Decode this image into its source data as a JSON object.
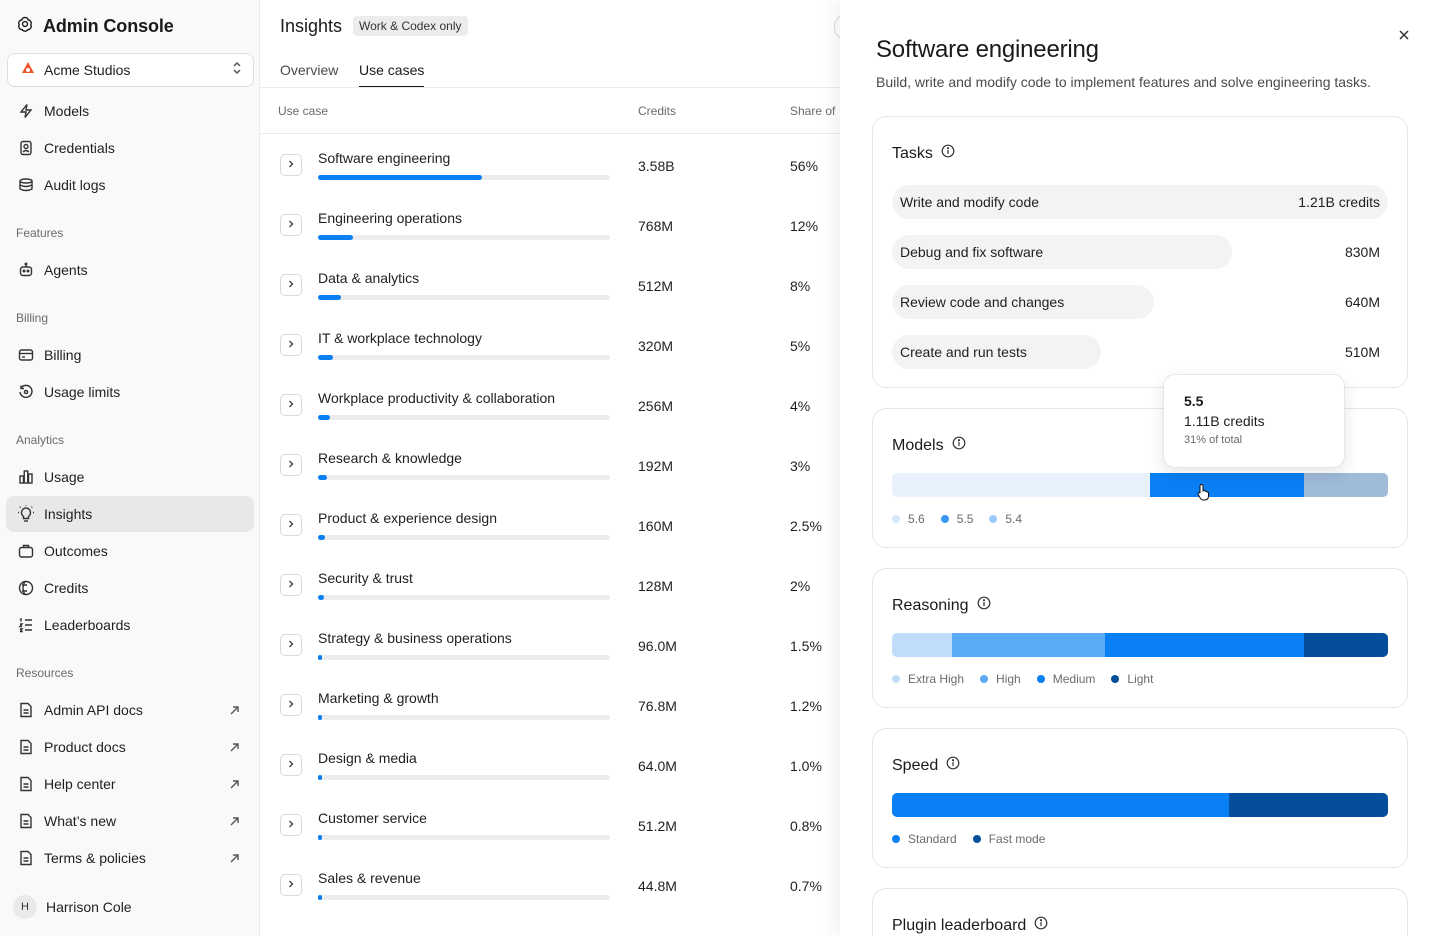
{
  "app": {
    "title": "Admin Console"
  },
  "org": {
    "name": "Acme Studios"
  },
  "sidebar": {
    "top_items": [
      {
        "label": "Models",
        "icon": "bolt-icon"
      },
      {
        "label": "Credentials",
        "icon": "badge-icon"
      },
      {
        "label": "Audit logs",
        "icon": "stack-icon"
      }
    ],
    "features_label": "Features",
    "features_items": [
      {
        "label": "Agents",
        "icon": "robot-icon"
      }
    ],
    "billing_label": "Billing",
    "billing_items": [
      {
        "label": "Billing",
        "icon": "card-icon"
      },
      {
        "label": "Usage limits",
        "icon": "limit-icon"
      }
    ],
    "analytics_label": "Analytics",
    "analytics_items": [
      {
        "label": "Usage",
        "icon": "bar-chart-icon"
      },
      {
        "label": "Insights",
        "icon": "lightbulb-icon",
        "active": true
      },
      {
        "label": "Outcomes",
        "icon": "briefcase-icon"
      },
      {
        "label": "Credits",
        "icon": "coin-icon"
      },
      {
        "label": "Leaderboards",
        "icon": "leaderboard-icon"
      }
    ],
    "resources_label": "Resources",
    "resources_items": [
      {
        "label": "Admin API docs",
        "icon": "doc-icon"
      },
      {
        "label": "Product docs",
        "icon": "doc-icon"
      },
      {
        "label": "Help center",
        "icon": "doc-icon"
      },
      {
        "label": "What’s new",
        "icon": "doc-icon"
      },
      {
        "label": "Terms & policies",
        "icon": "doc-icon"
      }
    ]
  },
  "user": {
    "initial": "H",
    "name": "Harrison Cole"
  },
  "main": {
    "title": "Insights",
    "badge": "Work & Codex only",
    "tabs": [
      {
        "label": "Overview"
      },
      {
        "label": "Use cases",
        "active": true
      }
    ],
    "columns": {
      "use_case": "Use case",
      "credits": "Credits",
      "share": "Share of"
    },
    "rows": [
      {
        "name": "Software engineering",
        "credits": "3.58B",
        "share": "56%",
        "fraction": 0.56
      },
      {
        "name": "Engineering operations",
        "credits": "768M",
        "share": "12%",
        "fraction": 0.12
      },
      {
        "name": "Data & analytics",
        "credits": "512M",
        "share": "8%",
        "fraction": 0.08
      },
      {
        "name": "IT & workplace technology",
        "credits": "320M",
        "share": "5%",
        "fraction": 0.05
      },
      {
        "name": "Workplace productivity & collaboration",
        "credits": "256M",
        "share": "4%",
        "fraction": 0.04
      },
      {
        "name": "Research & knowledge",
        "credits": "192M",
        "share": "3%",
        "fraction": 0.03
      },
      {
        "name": "Product & experience design",
        "credits": "160M",
        "share": "2.5%",
        "fraction": 0.025
      },
      {
        "name": "Security & trust",
        "credits": "128M",
        "share": "2%",
        "fraction": 0.02
      },
      {
        "name": "Strategy & business operations",
        "credits": "96.0M",
        "share": "1.5%",
        "fraction": 0.015
      },
      {
        "name": "Marketing & growth",
        "credits": "76.8M",
        "share": "1.2%",
        "fraction": 0.012
      },
      {
        "name": "Design & media",
        "credits": "64.0M",
        "share": "1.0%",
        "fraction": 0.01
      },
      {
        "name": "Customer service",
        "credits": "51.2M",
        "share": "0.8%",
        "fraction": 0.008
      },
      {
        "name": "Sales & revenue",
        "credits": "44.8M",
        "share": "0.7%",
        "fraction": 0.007
      }
    ]
  },
  "drawer": {
    "title": "Software engineering",
    "description": "Build, write and modify code to implement features and solve engineering tasks.",
    "tasks": {
      "title": "Tasks",
      "items": [
        {
          "label": "Write and modify code",
          "value": "1.21B credits",
          "fraction": 1.0
        },
        {
          "label": "Debug and fix software",
          "value": "830M",
          "fraction": 0.686
        },
        {
          "label": "Review code and changes",
          "value": "640M",
          "fraction": 0.529
        },
        {
          "label": "Create and run tests",
          "value": "510M",
          "fraction": 0.421
        }
      ]
    },
    "models": {
      "title": "Models",
      "segments": [
        {
          "label": "5.6",
          "fraction": 0.52,
          "color": "#e8f2fd",
          "dot": "#d6e8fb"
        },
        {
          "label": "5.5",
          "fraction": 0.31,
          "color": "#0b7ff4",
          "dot": "#3b97f6"
        },
        {
          "label": "5.4",
          "fraction": 0.17,
          "color": "#9fbbd8",
          "dot": "#9ccaf9"
        }
      ],
      "tooltip": {
        "title": "5.5",
        "credits": "1.11B credits",
        "share": "31% of total"
      }
    },
    "reasoning": {
      "title": "Reasoning",
      "segments": [
        {
          "label": "Extra High",
          "fraction": 0.12,
          "color": "#bfdcfb"
        },
        {
          "label": "High",
          "fraction": 0.31,
          "color": "#5aaaf8"
        },
        {
          "label": "Medium",
          "fraction": 0.4,
          "color": "#0b7ff4"
        },
        {
          "label": "Light",
          "fraction": 0.17,
          "color": "#044e9c"
        }
      ]
    },
    "speed": {
      "title": "Speed",
      "segments": [
        {
          "label": "Standard",
          "fraction": 0.68,
          "color": "#0b7ff4"
        },
        {
          "label": "Fast mode",
          "fraction": 0.32,
          "color": "#044e9c"
        }
      ]
    },
    "plugin": {
      "title": "Plugin leaderboard"
    }
  }
}
